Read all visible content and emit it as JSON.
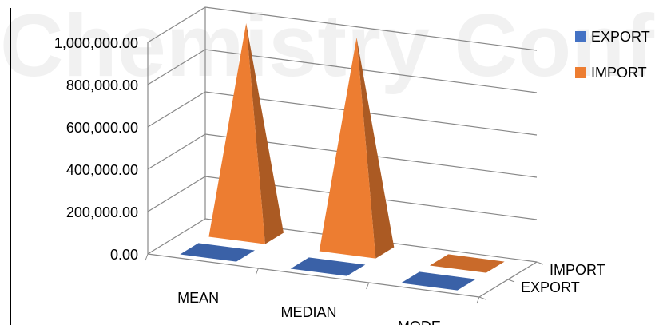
{
  "watermark": "Chemistry Conf",
  "chart_data": {
    "type": "bar",
    "style": "3d-pyramid",
    "categories": [
      "MEAN",
      "MEDIAN",
      "MODE"
    ],
    "series": [
      {
        "name": "EXPORT",
        "color": "#4472c4",
        "values": [
          2000,
          2000,
          2000
        ]
      },
      {
        "name": "IMPORT",
        "color": "#ed7d31",
        "values": [
          1000000,
          1000000,
          8000
        ]
      }
    ],
    "depth_labels": [
      "EXPORT",
      "IMPORT"
    ],
    "y_ticks": [
      "0.00",
      "200,000.00",
      "400,000.00",
      "600,000.00",
      "800,000.00",
      "1,000,000.00"
    ],
    "ylim": [
      0,
      1000000
    ],
    "legend": {
      "placement": "right",
      "entries": [
        "EXPORT",
        "IMPORT"
      ]
    },
    "grid": true
  }
}
